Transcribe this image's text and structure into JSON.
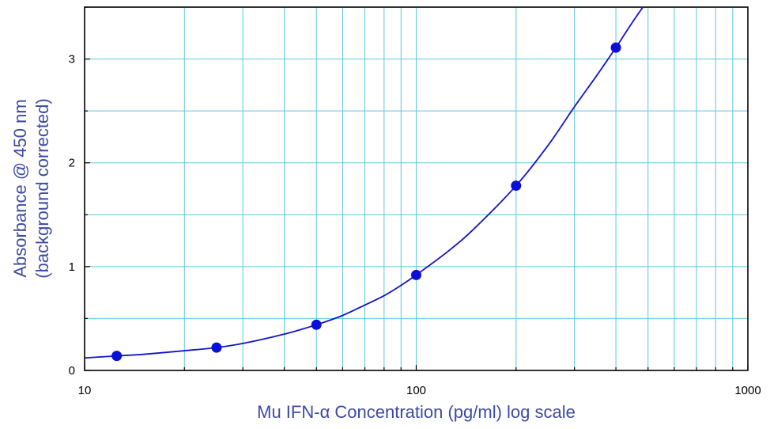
{
  "chart_data": {
    "type": "scatter",
    "xlabel": "Mu IFN-α Concentration (pg/ml) log scale",
    "ylabel_line1": "Absorbance @ 450 nm",
    "ylabel_line2": "(background corrected)",
    "x_scale": "log",
    "xlim": [
      10,
      1000
    ],
    "ylim": [
      0,
      3.5
    ],
    "x_ticks": [
      10,
      100,
      1000
    ],
    "x_tick_labels": [
      "10",
      "100",
      "1000"
    ],
    "y_ticks": [
      0,
      1,
      2,
      3
    ],
    "y_tick_labels": [
      "0",
      "1",
      "2",
      "3"
    ],
    "grid": true,
    "legend": "none",
    "series": [
      {
        "x": [
          12.5,
          25,
          50,
          100,
          200,
          400
        ],
        "y": [
          0.14,
          0.22,
          0.44,
          0.92,
          1.78,
          3.11
        ],
        "style": "markers"
      }
    ],
    "fit_curve": {
      "style": "line",
      "x": [
        10,
        12.5,
        15,
        20,
        25,
        30,
        40,
        50,
        60,
        70,
        80,
        90,
        100,
        125,
        150,
        200,
        250,
        300,
        350,
        400,
        450,
        500
      ],
      "y": [
        0.12,
        0.14,
        0.155,
        0.19,
        0.22,
        0.26,
        0.35,
        0.44,
        0.53,
        0.63,
        0.72,
        0.82,
        0.92,
        1.15,
        1.37,
        1.78,
        2.17,
        2.54,
        2.84,
        3.11,
        3.36,
        3.57
      ]
    },
    "colors": {
      "grid": "#5bc8e0",
      "frame": "#000000",
      "marker": "#0a10d8",
      "curve": "#1414c8",
      "axis_title": "#3d4aa6",
      "tick_label": "#000000"
    }
  }
}
